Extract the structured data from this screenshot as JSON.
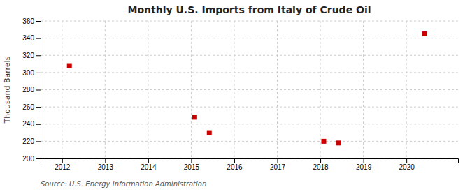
{
  "chart_data": {
    "type": "scatter",
    "title": "Monthly U.S. Imports from Italy of Crude Oil",
    "ylabel": "Thousand Barrels",
    "source": "Source: U.S. Energy Information Administration",
    "x": [
      2012.17,
      2015.08,
      2015.42,
      2018.08,
      2018.42,
      2020.42
    ],
    "values": [
      308,
      248,
      230,
      220,
      218,
      345
    ],
    "color": "#cc0000",
    "marker": "square",
    "xlim": [
      2011.5,
      2021.2
    ],
    "xticks": [
      2012,
      2013,
      2014,
      2015,
      2016,
      2017,
      2018,
      2019,
      2020
    ],
    "ylim": [
      200,
      360
    ],
    "yticks": [
      200,
      220,
      240,
      260,
      280,
      300,
      320,
      340,
      360
    ],
    "grid": true
  }
}
